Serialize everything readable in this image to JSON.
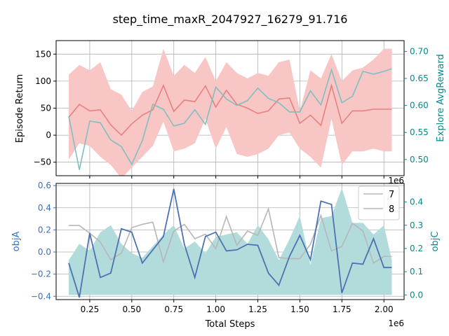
{
  "title": "step_time_maxR_2047927_16279_91.716",
  "colors": {
    "return_line": "#e88080",
    "return_band": "#f9c6c6",
    "explore_line": "#7fbfbf",
    "objA_line": "#4c72b0",
    "objC_fill": "#b2dcdc",
    "gray_line": "#b8b8b8",
    "teal_axis": "#008b8b",
    "blue_axis": "#3a6fc4"
  },
  "chart_data": [
    {
      "type": "line",
      "x": [
        0.125,
        0.188,
        0.25,
        0.313,
        0.375,
        0.438,
        0.5,
        0.563,
        0.625,
        0.688,
        0.75,
        0.813,
        0.875,
        0.938,
        1.0,
        1.063,
        1.125,
        1.188,
        1.25,
        1.313,
        1.375,
        1.438,
        1.5,
        1.563,
        1.625,
        1.688,
        1.75,
        1.813,
        1.875,
        1.938,
        2.0,
        2.047
      ],
      "x_multiplier": "1e6",
      "xlim": [
        0.05,
        2.12
      ],
      "xticks": [
        "0.25",
        "0.50",
        "0.75",
        "1.00",
        "1.25",
        "1.50",
        "1.75",
        "2.00"
      ],
      "ylabel": "Episode Return",
      "ylim": [
        -75,
        175
      ],
      "yticks": [
        "−50",
        "0",
        "50",
        "100",
        "150"
      ],
      "y2label": "Explore AvgReward",
      "y2lim": [
        0.47,
        0.72
      ],
      "y2ticks": [
        "0.50",
        "0.55",
        "0.60",
        "0.65",
        "0.70"
      ],
      "grid": true,
      "series": [
        {
          "values": [
            33,
            57,
            45,
            47,
            19,
            0,
            21,
            37,
            47,
            92,
            44,
            65,
            62,
            91,
            52,
            83,
            57,
            50,
            40,
            45,
            67,
            69,
            22,
            37,
            18,
            92,
            22,
            45,
            45,
            48,
            48,
            48
          ],
          "upper": [
            112,
            130,
            120,
            135,
            85,
            75,
            45,
            80,
            90,
            160,
            110,
            130,
            115,
            145,
            100,
            135,
            115,
            105,
            115,
            110,
            135,
            140,
            45,
            120,
            105,
            150,
            100,
            120,
            125,
            140,
            160,
            160
          ],
          "lower": [
            -45,
            -15,
            -20,
            -40,
            -55,
            -80,
            -60,
            -40,
            -20,
            25,
            -30,
            -25,
            -15,
            30,
            -25,
            15,
            -35,
            -40,
            -35,
            -25,
            0,
            5,
            -25,
            -40,
            -60,
            30,
            -55,
            -30,
            -30,
            -25,
            -30,
            -30
          ]
        },
        {
          "axis": "right",
          "values": [
            0.58,
            0.481,
            0.571,
            0.568,
            0.536,
            0.524,
            0.491,
            0.535,
            0.602,
            0.593,
            0.562,
            0.567,
            0.592,
            0.565,
            0.634,
            0.612,
            0.6,
            0.609,
            0.632,
            0.613,
            0.605,
            0.588,
            0.588,
            0.627,
            0.601,
            0.666,
            0.605,
            0.617,
            0.663,
            0.658,
            0.663,
            0.668
          ]
        }
      ]
    },
    {
      "type": "line",
      "x": [
        0.125,
        0.188,
        0.25,
        0.313,
        0.375,
        0.438,
        0.5,
        0.563,
        0.625,
        0.688,
        0.75,
        0.813,
        0.875,
        0.938,
        1.0,
        1.063,
        1.125,
        1.188,
        1.25,
        1.313,
        1.375,
        1.438,
        1.5,
        1.563,
        1.625,
        1.688,
        1.75,
        1.813,
        1.875,
        1.938,
        2.0,
        2.047
      ],
      "x_multiplier": "1e6",
      "xlim": [
        0.05,
        2.12
      ],
      "xticks": [
        "0.25",
        "0.50",
        "0.75",
        "1.00",
        "1.25",
        "1.50",
        "1.75",
        "2.00"
      ],
      "xlabel": "Total Steps",
      "ylabel": "objA",
      "ylim": [
        -0.43,
        0.62
      ],
      "yticks": [
        "−0.4",
        "−0.2",
        "0.0",
        "0.2",
        "0.4",
        "0.6"
      ],
      "y2label": "objC",
      "y2lim": [
        -0.02,
        0.48
      ],
      "y2ticks": [
        "0.0",
        "0.1",
        "0.2",
        "0.3",
        "0.4"
      ],
      "grid": true,
      "legend": "top-right",
      "series": [
        {
          "values": [
            -0.1,
            -0.41,
            0.17,
            -0.23,
            -0.19,
            0.21,
            0.18,
            -0.1,
            0.02,
            0.14,
            0.57,
            0.07,
            -0.23,
            0.14,
            0.18,
            0.01,
            0.02,
            0.07,
            0.06,
            -0.19,
            -0.3,
            -0.04,
            0.15,
            -0.07,
            0.46,
            0.43,
            -0.37,
            -0.1,
            -0.11,
            0.12,
            -0.14,
            -0.14
          ]
        },
        {
          "name": "7",
          "values": [
            0.24,
            0.24,
            0.17,
            0.09,
            -0.07,
            -0.01,
            0.22,
            0.25,
            0.27,
            -0.09,
            0.19,
            0.25,
            0.12,
            0.16,
            0.03,
            0.32,
            0.06,
            0.19,
            0.15,
            0.39,
            -0.05,
            -0.06,
            -0.06,
            0.07,
            0.33,
            0.01,
            0.05,
            0.26,
            0.19,
            -0.1,
            -0.04,
            -0.04
          ]
        },
        {
          "name": "8",
          "values": [
            0.24,
            0.24,
            0.17,
            0.09,
            -0.07,
            -0.01,
            0.22,
            0.25,
            0.27,
            -0.09,
            0.19,
            0.25,
            0.12,
            0.16,
            0.03,
            0.32,
            0.06,
            0.19,
            0.15,
            0.39,
            -0.05,
            -0.06,
            -0.06,
            0.07,
            0.33,
            0.01,
            0.05,
            0.26,
            0.19,
            -0.1,
            -0.04,
            -0.04
          ]
        },
        {
          "axis": "right",
          "type": "area",
          "values": [
            0.15,
            0.22,
            0.19,
            0.27,
            0.3,
            0.22,
            0.18,
            0.16,
            0.21,
            0.26,
            0.3,
            0.2,
            0.23,
            0.18,
            0.25,
            0.26,
            0.27,
            0.22,
            0.3,
            0.24,
            0.15,
            0.24,
            0.34,
            0.13,
            0.33,
            0.34,
            0.46,
            0.31,
            0.31,
            0.26,
            0.3,
            0.15
          ]
        }
      ]
    }
  ]
}
